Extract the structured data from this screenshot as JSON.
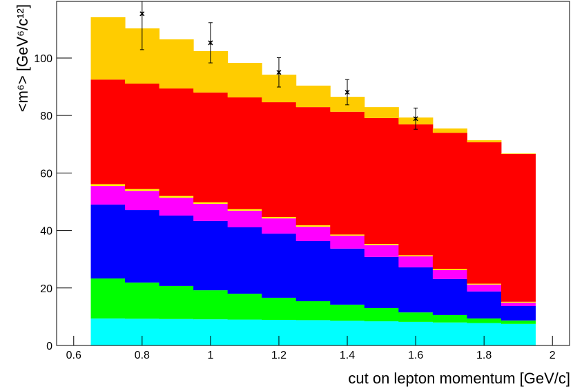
{
  "chart_data": {
    "type": "histogram",
    "stacked": true,
    "xlabel": "cut on lepton momentum [GeV/c]",
    "ylabel": "<m⁶> [GeV⁶/c¹²]",
    "bins": [
      0.65,
      0.75,
      0.85,
      0.95,
      1.05,
      1.15,
      1.25,
      1.35,
      1.45,
      1.55,
      1.65,
      1.75,
      1.85,
      1.95
    ],
    "series": [
      {
        "color": "#00ffff",
        "values": [
          9.4,
          9.3,
          9.2,
          9.1,
          9.0,
          8.9,
          8.8,
          8.6,
          8.4,
          8.2,
          8.0,
          7.8,
          7.5
        ]
      },
      {
        "color": "#00ff00",
        "values": [
          13.9,
          12.6,
          11.5,
          10.1,
          9.0,
          7.7,
          6.6,
          5.6,
          4.6,
          3.3,
          2.6,
          1.6,
          1.2
        ]
      },
      {
        "color": "#0000ff",
        "values": [
          25.7,
          25.2,
          24.5,
          24.1,
          23.1,
          22.3,
          20.9,
          19.5,
          17.8,
          15.7,
          12.5,
          9.4,
          5.0
        ]
      },
      {
        "color": "#ff00ff",
        "values": [
          6.5,
          6.7,
          6.2,
          6.0,
          5.8,
          5.3,
          5.0,
          4.5,
          4.1,
          3.8,
          3.1,
          2.4,
          1.2
        ]
      },
      {
        "color": "#ffff00",
        "values": [
          0.6,
          0.6,
          0.6,
          0.5,
          0.5,
          0.5,
          0.5,
          0.4,
          0.4,
          0.4,
          0.4,
          0.3,
          0.3
        ]
      },
      {
        "color": "#ff0000",
        "values": [
          36.4,
          36.7,
          37.4,
          38.2,
          38.9,
          39.9,
          41.1,
          42.7,
          43.8,
          45.5,
          47.4,
          49.2,
          51.4
        ]
      },
      {
        "color": "#ffcc00",
        "values": [
          21.7,
          19.2,
          17.1,
          14.4,
          12.0,
          9.6,
          7.5,
          5.2,
          3.8,
          2.4,
          1.5,
          0.7,
          0.2
        ]
      }
    ],
    "points": {
      "color": "#000000",
      "x": [
        0.8,
        1.0,
        1.2,
        1.4,
        1.6
      ],
      "values": [
        115.4,
        105.3,
        95.0,
        88.1,
        78.9
      ],
      "errors": [
        12.5,
        7.0,
        5.1,
        4.4,
        3.7
      ]
    },
    "xlim": [
      0.55,
      2.05
    ],
    "ylim": [
      0,
      119.7
    ],
    "xticks": [
      0.6,
      0.8,
      1,
      1.2,
      1.4,
      1.6,
      1.8,
      2
    ],
    "yticks": [
      0,
      20,
      40,
      60,
      80,
      100
    ]
  }
}
